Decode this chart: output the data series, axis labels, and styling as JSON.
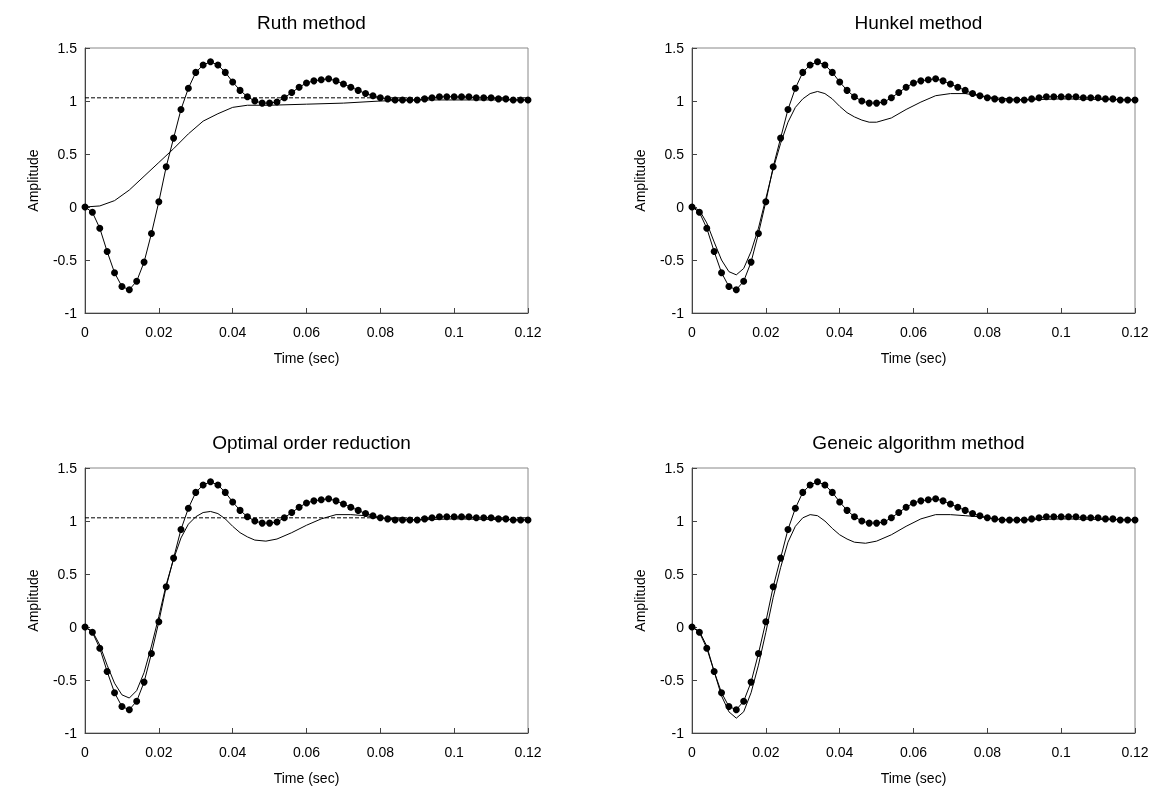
{
  "chart_data": [
    {
      "type": "line",
      "title": "Ruth method",
      "xlabel": "Time (sec)",
      "ylabel": "Amplitude",
      "xlim": [
        0,
        0.12
      ],
      "xticks": [
        0,
        0.02,
        0.04,
        0.06,
        0.08,
        0.1,
        0.12
      ],
      "ylim": [
        -1,
        1.5
      ],
      "yticks": [
        -1,
        -0.5,
        0,
        0.5,
        1,
        1.5
      ],
      "ref_lines": [
        {
          "axis": "y",
          "value": 1.03,
          "color": "#000000",
          "line_style": "dashed"
        }
      ],
      "series": [
        {
          "color": "#000000",
          "marker": "circle",
          "line_style": "solid",
          "x": [
            0,
            0.002,
            0.004,
            0.006,
            0.008,
            0.01,
            0.012,
            0.014,
            0.016,
            0.018,
            0.02,
            0.022,
            0.024,
            0.026,
            0.028,
            0.03,
            0.032,
            0.034,
            0.036,
            0.038,
            0.04,
            0.042,
            0.044,
            0.046,
            0.048,
            0.05,
            0.052,
            0.054,
            0.056,
            0.058,
            0.06,
            0.062,
            0.064,
            0.066,
            0.068,
            0.07,
            0.072,
            0.074,
            0.076,
            0.078,
            0.08,
            0.082,
            0.084,
            0.086,
            0.088,
            0.09,
            0.092,
            0.094,
            0.096,
            0.098,
            0.1,
            0.102,
            0.104,
            0.106,
            0.108,
            0.11,
            0.112,
            0.114,
            0.116,
            0.118,
            0.12
          ],
          "values": [
            0,
            -0.05,
            -0.2,
            -0.42,
            -0.62,
            -0.75,
            -0.78,
            -0.7,
            -0.52,
            -0.25,
            0.05,
            0.38,
            0.65,
            0.92,
            1.12,
            1.27,
            1.34,
            1.37,
            1.34,
            1.27,
            1.18,
            1.1,
            1.04,
            1.0,
            0.98,
            0.98,
            0.99,
            1.03,
            1.08,
            1.13,
            1.17,
            1.19,
            1.2,
            1.21,
            1.19,
            1.16,
            1.13,
            1.1,
            1.07,
            1.05,
            1.03,
            1.02,
            1.01,
            1.01,
            1.01,
            1.01,
            1.02,
            1.03,
            1.04,
            1.04,
            1.04,
            1.04,
            1.04,
            1.03,
            1.03,
            1.03,
            1.02,
            1.02,
            1.01,
            1.01,
            1.01
          ]
        },
        {
          "color": "#000000",
          "marker": "none",
          "line_style": "solid",
          "x": [
            0,
            0.004,
            0.008,
            0.012,
            0.016,
            0.02,
            0.024,
            0.028,
            0.032,
            0.036,
            0.04,
            0.044,
            0.05,
            0.06,
            0.07,
            0.08,
            0.09,
            0.1,
            0.12
          ],
          "values": [
            0,
            0.01,
            0.06,
            0.16,
            0.29,
            0.42,
            0.55,
            0.69,
            0.81,
            0.88,
            0.94,
            0.96,
            0.96,
            0.97,
            0.98,
            1.0,
            1.01,
            1.01,
            1.01
          ]
        }
      ]
    },
    {
      "type": "line",
      "title": "Hunkel method",
      "xlabel": "Time (sec)",
      "ylabel": "Amplitude",
      "xlim": [
        0,
        0.12
      ],
      "xticks": [
        0,
        0.02,
        0.04,
        0.06,
        0.08,
        0.1,
        0.12
      ],
      "ylim": [
        -1,
        1.5
      ],
      "yticks": [
        -1,
        -0.5,
        0,
        0.5,
        1,
        1.5
      ],
      "series": [
        {
          "color": "#000000",
          "marker": "circle",
          "line_style": "solid",
          "x": [
            0,
            0.002,
            0.004,
            0.006,
            0.008,
            0.01,
            0.012,
            0.014,
            0.016,
            0.018,
            0.02,
            0.022,
            0.024,
            0.026,
            0.028,
            0.03,
            0.032,
            0.034,
            0.036,
            0.038,
            0.04,
            0.042,
            0.044,
            0.046,
            0.048,
            0.05,
            0.052,
            0.054,
            0.056,
            0.058,
            0.06,
            0.062,
            0.064,
            0.066,
            0.068,
            0.07,
            0.072,
            0.074,
            0.076,
            0.078,
            0.08,
            0.082,
            0.084,
            0.086,
            0.088,
            0.09,
            0.092,
            0.094,
            0.096,
            0.098,
            0.1,
            0.102,
            0.104,
            0.106,
            0.108,
            0.11,
            0.112,
            0.114,
            0.116,
            0.118,
            0.12
          ],
          "values": [
            0,
            -0.05,
            -0.2,
            -0.42,
            -0.62,
            -0.75,
            -0.78,
            -0.7,
            -0.52,
            -0.25,
            0.05,
            0.38,
            0.65,
            0.92,
            1.12,
            1.27,
            1.34,
            1.37,
            1.34,
            1.27,
            1.18,
            1.1,
            1.04,
            1.0,
            0.98,
            0.98,
            0.99,
            1.03,
            1.08,
            1.13,
            1.17,
            1.19,
            1.2,
            1.21,
            1.19,
            1.16,
            1.13,
            1.1,
            1.07,
            1.05,
            1.03,
            1.02,
            1.01,
            1.01,
            1.01,
            1.01,
            1.02,
            1.03,
            1.04,
            1.04,
            1.04,
            1.04,
            1.04,
            1.03,
            1.03,
            1.03,
            1.02,
            1.02,
            1.01,
            1.01,
            1.01
          ]
        },
        {
          "color": "#000000",
          "marker": "none",
          "line_style": "solid",
          "x": [
            0,
            0.002,
            0.004,
            0.006,
            0.008,
            0.01,
            0.012,
            0.014,
            0.016,
            0.018,
            0.02,
            0.022,
            0.024,
            0.026,
            0.028,
            0.03,
            0.032,
            0.034,
            0.036,
            0.038,
            0.04,
            0.042,
            0.044,
            0.046,
            0.048,
            0.05,
            0.054,
            0.058,
            0.062,
            0.066,
            0.07,
            0.074,
            0.078,
            0.082,
            0.086,
            0.09,
            0.1,
            0.12
          ],
          "values": [
            0,
            -0.03,
            -0.15,
            -0.33,
            -0.5,
            -0.61,
            -0.64,
            -0.58,
            -0.42,
            -0.2,
            0.08,
            0.36,
            0.6,
            0.8,
            0.94,
            1.02,
            1.07,
            1.09,
            1.07,
            1.02,
            0.95,
            0.89,
            0.85,
            0.82,
            0.8,
            0.8,
            0.84,
            0.92,
            0.99,
            1.05,
            1.07,
            1.07,
            1.05,
            1.03,
            1.02,
            1.01,
            1.02,
            1.01
          ]
        }
      ]
    },
    {
      "type": "line",
      "title": "Optimal order reduction",
      "xlabel": "Time (sec)",
      "ylabel": "Amplitude",
      "xlim": [
        0,
        0.12
      ],
      "xticks": [
        0,
        0.02,
        0.04,
        0.06,
        0.08,
        0.1,
        0.12
      ],
      "ylim": [
        -1,
        1.5
      ],
      "yticks": [
        -1,
        -0.5,
        0,
        0.5,
        1,
        1.5
      ],
      "ref_lines": [
        {
          "axis": "y",
          "value": 1.03,
          "color": "#000000",
          "line_style": "dashed"
        }
      ],
      "series": [
        {
          "color": "#000000",
          "marker": "circle",
          "line_style": "solid",
          "x": [
            0,
            0.002,
            0.004,
            0.006,
            0.008,
            0.01,
            0.012,
            0.014,
            0.016,
            0.018,
            0.02,
            0.022,
            0.024,
            0.026,
            0.028,
            0.03,
            0.032,
            0.034,
            0.036,
            0.038,
            0.04,
            0.042,
            0.044,
            0.046,
            0.048,
            0.05,
            0.052,
            0.054,
            0.056,
            0.058,
            0.06,
            0.062,
            0.064,
            0.066,
            0.068,
            0.07,
            0.072,
            0.074,
            0.076,
            0.078,
            0.08,
            0.082,
            0.084,
            0.086,
            0.088,
            0.09,
            0.092,
            0.094,
            0.096,
            0.098,
            0.1,
            0.102,
            0.104,
            0.106,
            0.108,
            0.11,
            0.112,
            0.114,
            0.116,
            0.118,
            0.12
          ],
          "values": [
            0,
            -0.05,
            -0.2,
            -0.42,
            -0.62,
            -0.75,
            -0.78,
            -0.7,
            -0.52,
            -0.25,
            0.05,
            0.38,
            0.65,
            0.92,
            1.12,
            1.27,
            1.34,
            1.37,
            1.34,
            1.27,
            1.18,
            1.1,
            1.04,
            1.0,
            0.98,
            0.98,
            0.99,
            1.03,
            1.08,
            1.13,
            1.17,
            1.19,
            1.2,
            1.21,
            1.19,
            1.16,
            1.13,
            1.1,
            1.07,
            1.05,
            1.03,
            1.02,
            1.01,
            1.01,
            1.01,
            1.01,
            1.02,
            1.03,
            1.04,
            1.04,
            1.04,
            1.04,
            1.04,
            1.03,
            1.03,
            1.03,
            1.02,
            1.02,
            1.01,
            1.01,
            1.01
          ]
        },
        {
          "color": "#000000",
          "marker": "none",
          "line_style": "solid",
          "x": [
            0,
            0.002,
            0.004,
            0.006,
            0.008,
            0.01,
            0.012,
            0.014,
            0.016,
            0.018,
            0.02,
            0.022,
            0.024,
            0.026,
            0.028,
            0.03,
            0.032,
            0.034,
            0.036,
            0.038,
            0.04,
            0.042,
            0.044,
            0.046,
            0.049,
            0.052,
            0.056,
            0.06,
            0.064,
            0.068,
            0.072,
            0.076,
            0.08,
            0.085,
            0.09,
            0.1,
            0.12
          ],
          "values": [
            0,
            -0.04,
            -0.17,
            -0.36,
            -0.53,
            -0.64,
            -0.67,
            -0.6,
            -0.43,
            -0.18,
            0.1,
            0.4,
            0.64,
            0.84,
            0.97,
            1.04,
            1.08,
            1.09,
            1.07,
            1.02,
            0.95,
            0.89,
            0.85,
            0.82,
            0.81,
            0.83,
            0.89,
            0.96,
            1.02,
            1.06,
            1.06,
            1.05,
            1.03,
            1.02,
            1.01,
            1.02,
            1.01
          ]
        }
      ]
    },
    {
      "type": "line",
      "title": "Geneic algorithm method",
      "xlabel": "Time (sec)",
      "ylabel": "Amplitude",
      "xlim": [
        0,
        0.12
      ],
      "xticks": [
        0,
        0.02,
        0.04,
        0.06,
        0.08,
        0.1,
        0.12
      ],
      "ylim": [
        -1,
        1.5
      ],
      "yticks": [
        -1,
        -0.5,
        0,
        0.5,
        1,
        1.5
      ],
      "series": [
        {
          "color": "#000000",
          "marker": "circle",
          "line_style": "solid",
          "x": [
            0,
            0.002,
            0.004,
            0.006,
            0.008,
            0.01,
            0.012,
            0.014,
            0.016,
            0.018,
            0.02,
            0.022,
            0.024,
            0.026,
            0.028,
            0.03,
            0.032,
            0.034,
            0.036,
            0.038,
            0.04,
            0.042,
            0.044,
            0.046,
            0.048,
            0.05,
            0.052,
            0.054,
            0.056,
            0.058,
            0.06,
            0.062,
            0.064,
            0.066,
            0.068,
            0.07,
            0.072,
            0.074,
            0.076,
            0.078,
            0.08,
            0.082,
            0.084,
            0.086,
            0.088,
            0.09,
            0.092,
            0.094,
            0.096,
            0.098,
            0.1,
            0.102,
            0.104,
            0.106,
            0.108,
            0.11,
            0.112,
            0.114,
            0.116,
            0.118,
            0.12
          ],
          "values": [
            0,
            -0.05,
            -0.2,
            -0.42,
            -0.62,
            -0.75,
            -0.78,
            -0.7,
            -0.52,
            -0.25,
            0.05,
            0.38,
            0.65,
            0.92,
            1.12,
            1.27,
            1.34,
            1.37,
            1.34,
            1.27,
            1.18,
            1.1,
            1.04,
            1.0,
            0.98,
            0.98,
            0.99,
            1.03,
            1.08,
            1.13,
            1.17,
            1.19,
            1.2,
            1.21,
            1.19,
            1.16,
            1.13,
            1.1,
            1.07,
            1.05,
            1.03,
            1.02,
            1.01,
            1.01,
            1.01,
            1.01,
            1.02,
            1.03,
            1.04,
            1.04,
            1.04,
            1.04,
            1.04,
            1.03,
            1.03,
            1.03,
            1.02,
            1.02,
            1.01,
            1.01,
            1.01
          ]
        },
        {
          "color": "#000000",
          "marker": "none",
          "line_style": "solid",
          "x": [
            0,
            0.002,
            0.004,
            0.006,
            0.008,
            0.01,
            0.012,
            0.014,
            0.016,
            0.018,
            0.02,
            0.022,
            0.024,
            0.026,
            0.028,
            0.03,
            0.032,
            0.034,
            0.036,
            0.038,
            0.04,
            0.042,
            0.044,
            0.047,
            0.05,
            0.054,
            0.058,
            0.062,
            0.066,
            0.07,
            0.074,
            0.078,
            0.082,
            0.086,
            0.09,
            0.1,
            0.12
          ],
          "values": [
            0,
            -0.04,
            -0.18,
            -0.42,
            -0.65,
            -0.8,
            -0.86,
            -0.8,
            -0.62,
            -0.36,
            -0.05,
            0.28,
            0.56,
            0.8,
            0.95,
            1.03,
            1.06,
            1.05,
            1.0,
            0.93,
            0.87,
            0.83,
            0.8,
            0.79,
            0.81,
            0.87,
            0.95,
            1.02,
            1.06,
            1.06,
            1.05,
            1.04,
            1.02,
            1.01,
            1.01,
            1.02,
            1.01
          ]
        }
      ]
    }
  ]
}
